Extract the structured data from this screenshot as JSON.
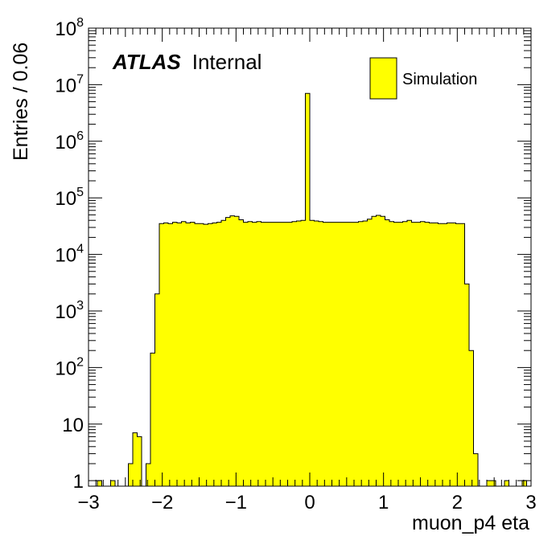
{
  "chart_data": {
    "type": "bar",
    "histogram_style": "filled-step",
    "ylabel": "Entries / 0.06",
    "xlabel": "muon_p4 eta",
    "atlas_label": {
      "bold": "ATLAS",
      "normal": "Internal"
    },
    "legend": {
      "entries": [
        "Simulation"
      ],
      "placement": "top-right"
    },
    "xlim": [
      -3,
      3
    ],
    "ylim": [
      0.8,
      100000000
    ],
    "yscale": "log",
    "grid": false,
    "x_ticks": [
      {
        "value": -3,
        "label": "−3"
      },
      {
        "value": -2,
        "label": "−2"
      },
      {
        "value": -1,
        "label": "−1"
      },
      {
        "value": 0,
        "label": "0"
      },
      {
        "value": 1,
        "label": "1"
      },
      {
        "value": 2,
        "label": "2"
      },
      {
        "value": 3,
        "label": "3"
      }
    ],
    "y_ticks": [
      {
        "value": 1,
        "base": "1",
        "exp": ""
      },
      {
        "value": 10,
        "base": "10",
        "exp": ""
      },
      {
        "value": 100,
        "base": "10",
        "exp": "2"
      },
      {
        "value": 1000,
        "base": "10",
        "exp": "3"
      },
      {
        "value": 10000,
        "base": "10",
        "exp": "4"
      },
      {
        "value": 100000,
        "base": "10",
        "exp": "5"
      },
      {
        "value": 1000000,
        "base": "10",
        "exp": "6"
      },
      {
        "value": 10000000,
        "base": "10",
        "exp": "7"
      },
      {
        "value": 100000000,
        "base": "10",
        "exp": "8"
      }
    ],
    "bin_width": 0.06,
    "x_start": -3,
    "series": [
      {
        "name": "Simulation",
        "color": "#ffff00",
        "edge_color": "#000000",
        "values": [
          0,
          0,
          1,
          0,
          0,
          1,
          0,
          0,
          0,
          2,
          7,
          6,
          0,
          2,
          180,
          2000,
          35000,
          36000,
          35000,
          37000,
          36000,
          38000,
          36000,
          37000,
          35000,
          35000,
          34000,
          35000,
          36000,
          37000,
          40000,
          45000,
          48000,
          47000,
          41000,
          37000,
          38000,
          37000,
          38000,
          37000,
          37000,
          37000,
          37000,
          37000,
          37000,
          37000,
          38000,
          39000,
          40000,
          7000000,
          40000,
          39000,
          38000,
          37000,
          37000,
          37000,
          37000,
          37000,
          37000,
          37000,
          37000,
          38000,
          39000,
          42000,
          47000,
          49000,
          47000,
          41000,
          38000,
          37000,
          37000,
          38000,
          40000,
          37000,
          37000,
          38000,
          37000,
          36000,
          36000,
          35000,
          35000,
          36000,
          36000,
          35000,
          35000,
          3000,
          200,
          3,
          0,
          0,
          1,
          1,
          0,
          0,
          1,
          0,
          0,
          0,
          1,
          0
        ]
      }
    ]
  }
}
